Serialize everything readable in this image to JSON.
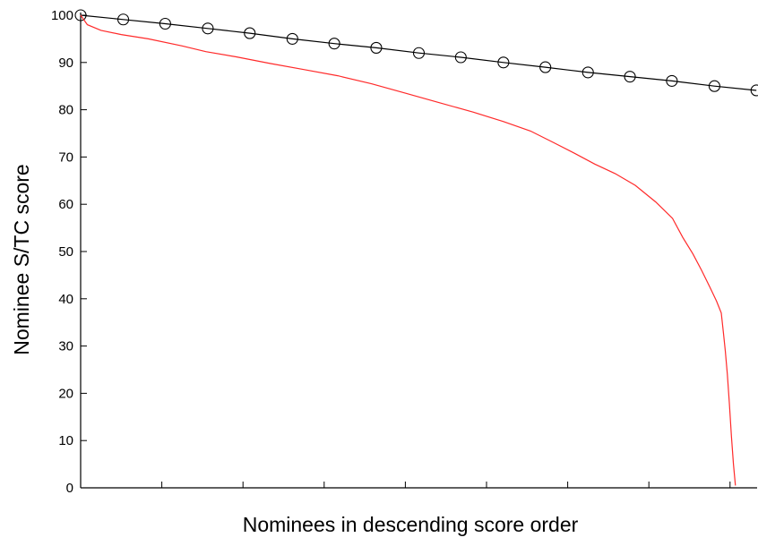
{
  "chart_data": {
    "type": "line",
    "title": "",
    "xlabel": "Nominees in descending score order",
    "ylabel": "Nominee  S/TC score",
    "ylim": [
      0,
      100
    ],
    "xlim": [
      0,
      1000
    ],
    "y_ticks": [
      0,
      10,
      20,
      30,
      40,
      50,
      60,
      70,
      80,
      90,
      100
    ],
    "x_ticks": [
      120,
      240,
      360,
      480,
      600,
      720,
      840,
      960
    ],
    "grid": false,
    "legend": "none",
    "series": [
      {
        "color": "#000000",
        "marker": "circle",
        "points": [
          [
            0,
            100
          ],
          [
            63,
            99.1
          ],
          [
            125,
            98.2
          ],
          [
            188,
            97.2
          ],
          [
            250,
            96.2
          ],
          [
            313,
            95.0
          ],
          [
            375,
            94.0
          ],
          [
            437,
            93.1
          ],
          [
            500,
            92.0
          ],
          [
            562,
            91.1
          ],
          [
            625,
            90.0
          ],
          [
            687,
            89.0
          ],
          [
            750,
            87.9
          ],
          [
            812,
            87.0
          ],
          [
            874,
            86.1
          ],
          [
            937,
            85.0
          ],
          [
            999,
            84.1
          ]
        ]
      },
      {
        "color": "#ff2a2a",
        "marker": "none",
        "points": [
          [
            0,
            100
          ],
          [
            10,
            98
          ],
          [
            30,
            96.8
          ],
          [
            60,
            95.9
          ],
          [
            100,
            95.0
          ],
          [
            150,
            93.5
          ],
          [
            185,
            92.3
          ],
          [
            230,
            91.2
          ],
          [
            280,
            89.8
          ],
          [
            330,
            88.5
          ],
          [
            380,
            87.2
          ],
          [
            430,
            85.5
          ],
          [
            480,
            83.5
          ],
          [
            530,
            81.5
          ],
          [
            580,
            79.5
          ],
          [
            625,
            77.5
          ],
          [
            665,
            75.5
          ],
          [
            700,
            73.0
          ],
          [
            730,
            70.8
          ],
          [
            760,
            68.5
          ],
          [
            790,
            66.5
          ],
          [
            820,
            64.0
          ],
          [
            850,
            60.5
          ],
          [
            875,
            57.0
          ],
          [
            890,
            53.0
          ],
          [
            905,
            49.5
          ],
          [
            918,
            46.0
          ],
          [
            930,
            42.5
          ],
          [
            940,
            39.5
          ],
          [
            947,
            37.0
          ],
          [
            950,
            33.0
          ],
          [
            953,
            29.0
          ],
          [
            956,
            24.0
          ],
          [
            959,
            18.0
          ],
          [
            962,
            11.0
          ],
          [
            965,
            5.0
          ],
          [
            968,
            0.5
          ]
        ]
      }
    ]
  }
}
